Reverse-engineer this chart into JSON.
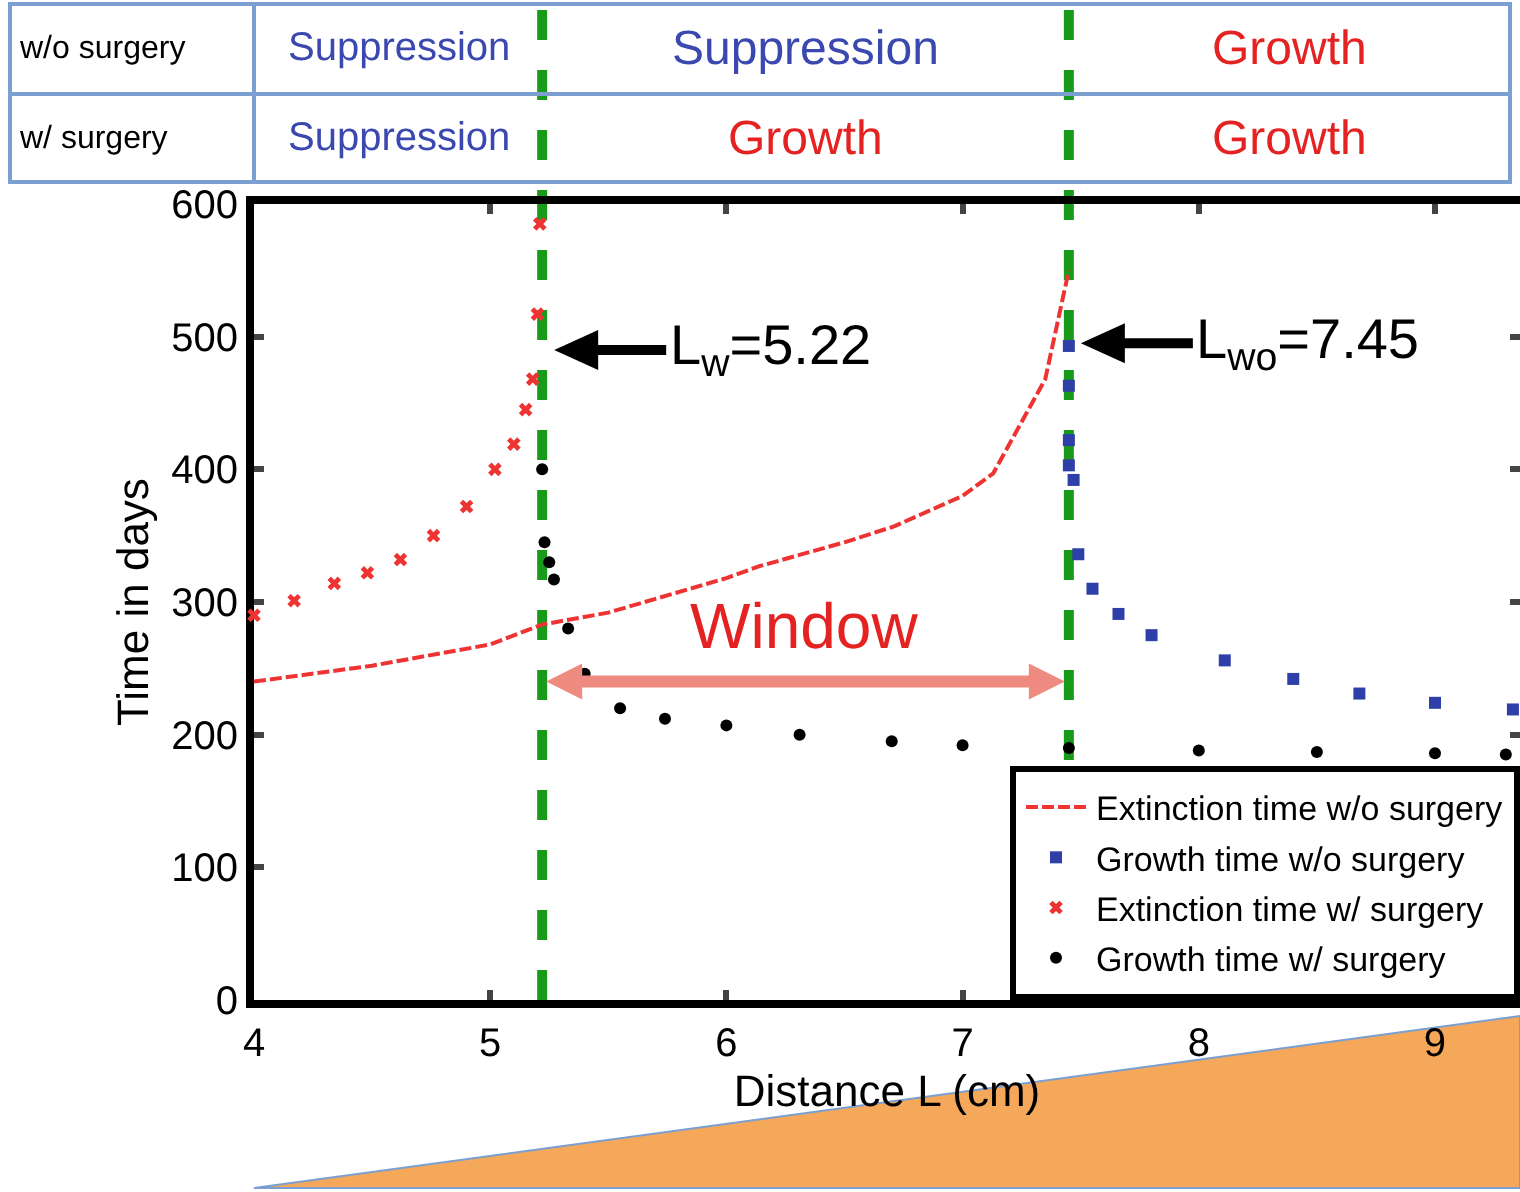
{
  "chart_data": {
    "type": "scatter",
    "xlabel": "Distance L (cm)",
    "ylabel": "Time in days",
    "xlim": [
      4,
      9.36
    ],
    "xticks": [
      4,
      5,
      6,
      7,
      8,
      9
    ],
    "ylim": [
      0,
      600
    ],
    "yticks": [
      0,
      100,
      200,
      300,
      400,
      500,
      600
    ],
    "grid": false,
    "legend": "bottom right",
    "series": [
      {
        "name": "Extinction time w/o surgery",
        "type": "line",
        "line_style": "dashed",
        "marker": "none",
        "color": "#ee3333",
        "x": [
          4,
          4.5,
          5,
          5.22,
          5.5,
          6,
          6.14,
          6.5,
          6.71,
          7,
          7.13,
          7.35,
          7.45
        ],
        "values": [
          240,
          252,
          268,
          283,
          292,
          318,
          327,
          345,
          357,
          380,
          397,
          468,
          550
        ]
      },
      {
        "name": "Growth time w/o surgery",
        "type": "scatter",
        "marker": "square",
        "color": "#2e3fa8",
        "x": [
          7.45,
          7.45,
          7.45,
          7.45,
          7.47,
          7.49,
          7.55,
          7.66,
          7.8,
          8.11,
          8.4,
          8.68,
          9,
          9.33
        ],
        "values": [
          493,
          463,
          422,
          403,
          392,
          336,
          310,
          291,
          275,
          256,
          242,
          231,
          224,
          219
        ]
      },
      {
        "name": "Extinction time w/ surgery",
        "type": "scatter",
        "marker": "cross",
        "color": "#ee3333",
        "x": [
          4,
          4.17,
          4.34,
          4.48,
          4.62,
          4.76,
          4.9,
          5.02,
          5.1,
          5.15,
          5.18,
          5.2,
          5.21
        ],
        "values": [
          290,
          301,
          314,
          322,
          332,
          350,
          372,
          400,
          419,
          445,
          468,
          517,
          585
        ]
      },
      {
        "name": "Growth time w/ surgery",
        "type": "scatter",
        "marker": "circle",
        "color": "#000000",
        "x": [
          5.22,
          5.23,
          5.25,
          5.27,
          5.33,
          5.4,
          5.55,
          5.74,
          6,
          6.31,
          6.7,
          7,
          7.45,
          8,
          8.5,
          9,
          9.3
        ],
        "values": [
          400,
          345,
          330,
          317,
          280,
          246,
          220,
          212,
          207,
          200,
          195,
          192,
          190,
          188,
          187,
          186,
          185
        ]
      }
    ],
    "ref_lines": [
      {
        "axis": "x",
        "value": 5.22,
        "color": "#1a9a1a",
        "line_style": "dashed"
      },
      {
        "axis": "x",
        "value": 7.45,
        "color": "#1a9a1a",
        "line_style": "dashed"
      }
    ],
    "annotations": [
      "w/o surgery",
      "Suppression",
      "Suppression",
      "Growth",
      "w/ surgery",
      "Suppression",
      "Growth",
      "Growth",
      {
        "text": "L$_{w}$=5.22",
        "x": 5.22,
        "y": 490
      },
      {
        "text": "L$_{wo}$=7.45",
        "x": 7.45,
        "y": 495
      },
      "Window"
    ]
  }
}
